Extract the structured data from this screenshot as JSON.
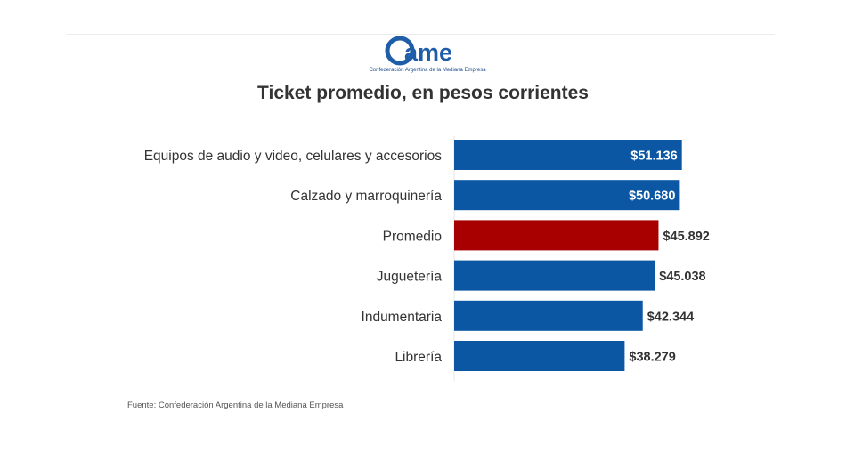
{
  "logo": {
    "text": "ame",
    "subtitle": "Confederación Argentina de la Mediana Empresa",
    "color": "#1f5da8"
  },
  "chart_data": {
    "type": "bar",
    "orientation": "horizontal",
    "title": "Ticket promedio, en pesos corrientes",
    "categories": [
      "Equipos de audio y video, celulares y accesorios",
      "Calzado y marroquinería",
      "Promedio",
      "Juguetería",
      "Indumentaria",
      "Librería"
    ],
    "values": [
      51136,
      50680,
      45892,
      45038,
      42344,
      38279
    ],
    "value_labels": [
      "$51.136",
      "$50.680",
      "$45.892",
      "$45.038",
      "$42.344",
      "$38.279"
    ],
    "labels_inside": [
      true,
      true,
      false,
      false,
      false,
      false
    ],
    "bar_colors": [
      "#0b57a4",
      "#0b57a4",
      "#a80000",
      "#0b57a4",
      "#0b57a4",
      "#0b57a4"
    ],
    "xlim": [
      0,
      54000
    ],
    "grid": false
  },
  "source": "Fuente: Confederación Argentina de la Mediana Empresa"
}
